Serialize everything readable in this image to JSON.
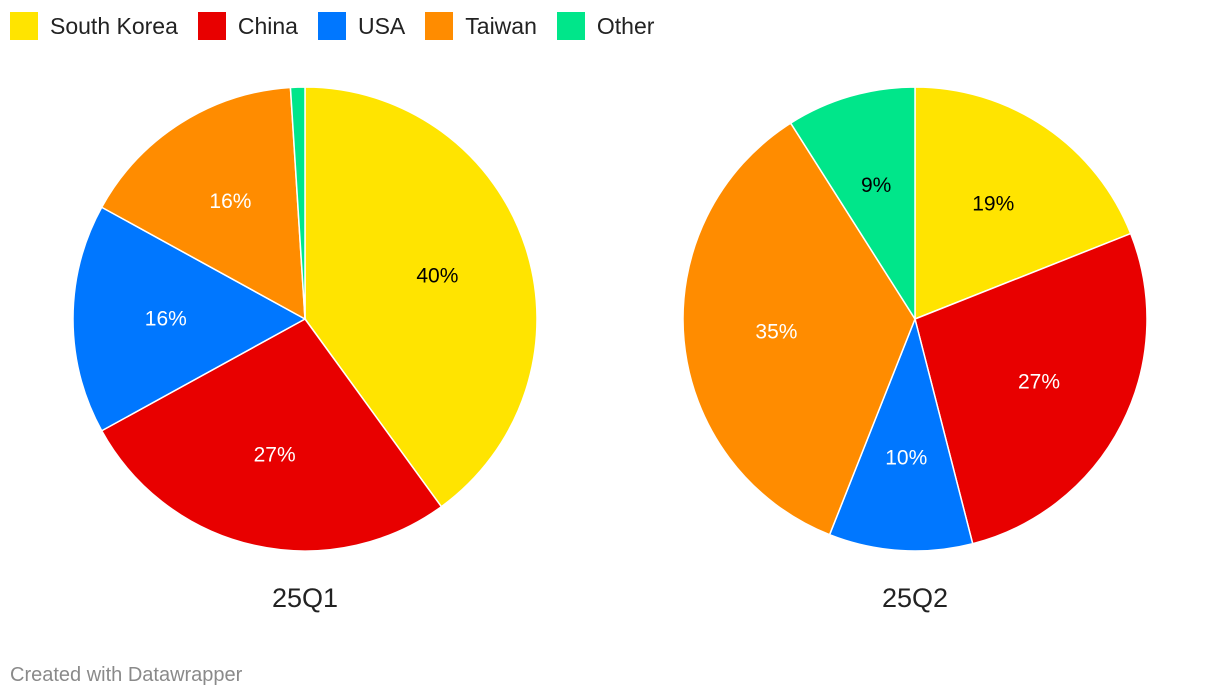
{
  "legend": [
    {
      "label": "South Korea",
      "color": "#FFE400"
    },
    {
      "label": "China",
      "color": "#E80000"
    },
    {
      "label": "USA",
      "color": "#0077FF"
    },
    {
      "label": "Taiwan",
      "color": "#FF8C00"
    },
    {
      "label": "Other",
      "color": "#00E68A"
    }
  ],
  "chart_data": [
    {
      "type": "pie",
      "title": "25Q1",
      "labels": [
        "South Korea",
        "China",
        "USA",
        "Taiwan",
        "Other"
      ],
      "values": [
        40,
        27,
        16,
        16,
        1
      ],
      "value_labels": [
        "40%",
        "27%",
        "16%",
        "16%",
        ""
      ],
      "label_colors": [
        "#000000",
        "#ffffff",
        "#ffffff",
        "#ffffff",
        "#000000"
      ]
    },
    {
      "type": "pie",
      "title": "25Q2",
      "labels": [
        "South Korea",
        "China",
        "USA",
        "Taiwan",
        "Other"
      ],
      "values": [
        19,
        27,
        10,
        35,
        9
      ],
      "value_labels": [
        "19%",
        "27%",
        "10%",
        "35%",
        "9%"
      ],
      "label_colors": [
        "#000000",
        "#ffffff",
        "#ffffff",
        "#ffffff",
        "#000000"
      ]
    }
  ],
  "footer": "Created with Datawrapper"
}
